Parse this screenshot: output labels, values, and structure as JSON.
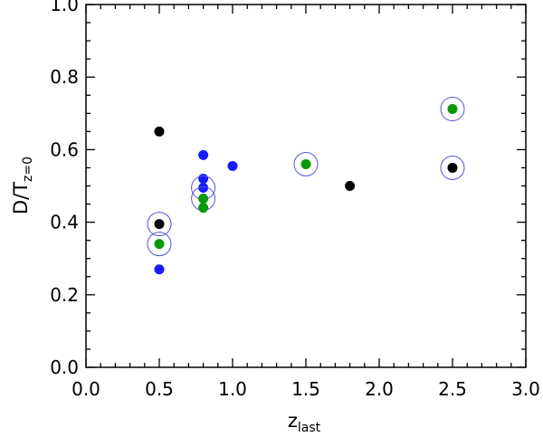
{
  "chart_data": {
    "type": "scatter",
    "title": "",
    "xlabel": {
      "main": "z",
      "sub": "last"
    },
    "ylabel": {
      "main": "D/T",
      "sub": "z=0"
    },
    "xlim": [
      0.0,
      3.0
    ],
    "ylim": [
      0.0,
      1.0
    ],
    "x_ticks": [
      "0.0",
      "0.5",
      "1.0",
      "1.5",
      "2.0",
      "2.5",
      "3.0"
    ],
    "y_ticks": [
      "0.0",
      "0.2",
      "0.4",
      "0.6",
      "0.8",
      "1.0"
    ],
    "grid": false,
    "legend": "none",
    "colors": {
      "black": "#000000",
      "blue": "#1a1aff",
      "green": "#0a990a",
      "ring": "#5555dd"
    },
    "series": [
      {
        "color": "#000000",
        "points": [
          {
            "x": 0.5,
            "y": 0.65
          },
          {
            "x": 0.5,
            "y": 0.395,
            "circled": true
          },
          {
            "x": 1.8,
            "y": 0.5
          },
          {
            "x": 2.5,
            "y": 0.55,
            "circled": true
          }
        ]
      },
      {
        "color": "#1a1aff",
        "points": [
          {
            "x": 0.5,
            "y": 0.27
          },
          {
            "x": 0.8,
            "y": 0.585
          },
          {
            "x": 0.8,
            "y": 0.52
          },
          {
            "x": 0.8,
            "y": 0.495,
            "circled": true
          },
          {
            "x": 1.0,
            "y": 0.555
          }
        ]
      },
      {
        "color": "#0a990a",
        "points": [
          {
            "x": 0.5,
            "y": 0.34,
            "circled": true
          },
          {
            "x": 0.8,
            "y": 0.465,
            "circled": true
          },
          {
            "x": 0.8,
            "y": 0.44
          },
          {
            "x": 1.5,
            "y": 0.56,
            "circled": true
          },
          {
            "x": 2.5,
            "y": 0.712,
            "circled": true
          }
        ]
      }
    ]
  }
}
